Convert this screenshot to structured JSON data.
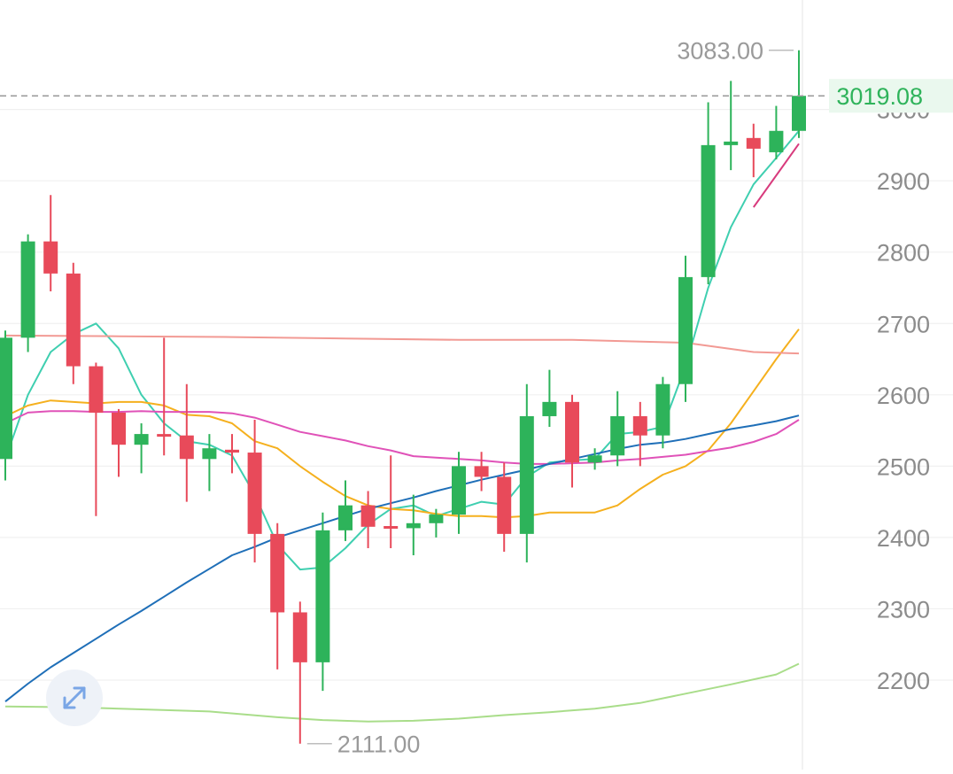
{
  "chart_data": {
    "type": "candlestick",
    "ylim": [
      2100,
      3120
    ],
    "yticks": [
      2200,
      2300,
      2400,
      2500,
      2600,
      2700,
      2800,
      2900,
      3000
    ],
    "ytick_labels": [
      "2200",
      "2300",
      "2400",
      "2500",
      "2600",
      "2700",
      "2800",
      "2900",
      "3000"
    ],
    "last_price": 3019.08,
    "last_price_label": "3019.08",
    "high_label": "3083.00",
    "low_label": "2111.00",
    "grid": true,
    "colors": {
      "up": "#2db35a",
      "down": "#e84a5a",
      "last_price_line": "#999999",
      "last_price_text": "#2fb35b",
      "last_price_bg": "#eaf8ee",
      "ma_1": "#3fcfb0",
      "ma_2": "#f5b01e",
      "ma_3": "#e052b8",
      "ma_4": "#1f6fb8",
      "ma_5": "#f29a94",
      "ma_6": "#a9dd8a",
      "ma_7": "#d83b7d"
    },
    "candles": [
      {
        "o": 2510,
        "h": 2690,
        "l": 2480,
        "c": 2680
      },
      {
        "o": 2680,
        "h": 2825,
        "l": 2660,
        "c": 2815
      },
      {
        "o": 2815,
        "h": 2880,
        "l": 2745,
        "c": 2770
      },
      {
        "o": 2770,
        "h": 2785,
        "l": 2615,
        "c": 2640
      },
      {
        "o": 2640,
        "h": 2645,
        "l": 2430,
        "c": 2575
      },
      {
        "o": 2575,
        "h": 2580,
        "l": 2485,
        "c": 2530
      },
      {
        "o": 2530,
        "h": 2560,
        "l": 2490,
        "c": 2545
      },
      {
        "o": 2545,
        "h": 2680,
        "l": 2515,
        "c": 2543
      },
      {
        "o": 2543,
        "h": 2615,
        "l": 2450,
        "c": 2510
      },
      {
        "o": 2510,
        "h": 2545,
        "l": 2465,
        "c": 2525
      },
      {
        "o": 2523,
        "h": 2545,
        "l": 2490,
        "c": 2519
      },
      {
        "o": 2519,
        "h": 2565,
        "l": 2365,
        "c": 2405
      },
      {
        "o": 2405,
        "h": 2420,
        "l": 2215,
        "c": 2295
      },
      {
        "o": 2295,
        "h": 2310,
        "l": 2111,
        "c": 2225
      },
      {
        "o": 2225,
        "h": 2435,
        "l": 2185,
        "c": 2410
      },
      {
        "o": 2410,
        "h": 2480,
        "l": 2395,
        "c": 2445
      },
      {
        "o": 2445,
        "h": 2465,
        "l": 2385,
        "c": 2415
      },
      {
        "o": 2416,
        "h": 2515,
        "l": 2385,
        "c": 2413
      },
      {
        "o": 2413,
        "h": 2460,
        "l": 2375,
        "c": 2420
      },
      {
        "o": 2420,
        "h": 2440,
        "l": 2400,
        "c": 2432
      },
      {
        "o": 2432,
        "h": 2520,
        "l": 2405,
        "c": 2500
      },
      {
        "o": 2500,
        "h": 2520,
        "l": 2465,
        "c": 2485
      },
      {
        "o": 2485,
        "h": 2505,
        "l": 2380,
        "c": 2405
      },
      {
        "o": 2405,
        "h": 2615,
        "l": 2365,
        "c": 2570
      },
      {
        "o": 2570,
        "h": 2635,
        "l": 2555,
        "c": 2590
      },
      {
        "o": 2590,
        "h": 2600,
        "l": 2470,
        "c": 2505
      },
      {
        "o": 2505,
        "h": 2525,
        "l": 2495,
        "c": 2515
      },
      {
        "o": 2515,
        "h": 2605,
        "l": 2500,
        "c": 2570
      },
      {
        "o": 2570,
        "h": 2590,
        "l": 2500,
        "c": 2543
      },
      {
        "o": 2543,
        "h": 2625,
        "l": 2525,
        "c": 2615
      },
      {
        "o": 2615,
        "h": 2795,
        "l": 2590,
        "c": 2765
      },
      {
        "o": 2765,
        "h": 3010,
        "l": 2755,
        "c": 2950
      },
      {
        "o": 2950,
        "h": 3040,
        "l": 2915,
        "c": 2955
      },
      {
        "o": 2960,
        "h": 2980,
        "l": 2905,
        "c": 2945
      },
      {
        "o": 2940,
        "h": 3005,
        "l": 2930,
        "c": 2970
      },
      {
        "o": 2970,
        "h": 3083,
        "l": 2960,
        "c": 3019.08
      }
    ],
    "ma_lines": [
      {
        "color_key": "ma_1",
        "points": [
          [
            0,
            2510
          ],
          [
            1,
            2600
          ],
          [
            2,
            2660
          ],
          [
            3,
            2685
          ],
          [
            4,
            2700
          ],
          [
            5,
            2665
          ],
          [
            6,
            2600
          ],
          [
            7,
            2560
          ],
          [
            8,
            2535
          ],
          [
            9,
            2530
          ],
          [
            10,
            2515
          ],
          [
            11,
            2460
          ],
          [
            12,
            2390
          ],
          [
            13,
            2355
          ],
          [
            14,
            2358
          ],
          [
            15,
            2385
          ],
          [
            16,
            2418
          ],
          [
            17,
            2440
          ],
          [
            18,
            2445
          ],
          [
            19,
            2430
          ],
          [
            20,
            2440
          ],
          [
            21,
            2450
          ],
          [
            22,
            2446
          ],
          [
            23,
            2485
          ],
          [
            24,
            2505
          ],
          [
            25,
            2508
          ],
          [
            26,
            2510
          ],
          [
            27,
            2545
          ],
          [
            28,
            2548
          ],
          [
            29,
            2555
          ],
          [
            30,
            2640
          ],
          [
            31,
            2750
          ],
          [
            32,
            2835
          ],
          [
            33,
            2895
          ],
          [
            34,
            2932
          ],
          [
            35,
            2970
          ]
        ]
      },
      {
        "color_key": "ma_2",
        "points": [
          [
            0,
            2570
          ],
          [
            1,
            2585
          ],
          [
            2,
            2592
          ],
          [
            3,
            2590
          ],
          [
            4,
            2588
          ],
          [
            5,
            2590
          ],
          [
            6,
            2590
          ],
          [
            7,
            2585
          ],
          [
            8,
            2572
          ],
          [
            9,
            2570
          ],
          [
            10,
            2560
          ],
          [
            11,
            2535
          ],
          [
            12,
            2525
          ],
          [
            13,
            2500
          ],
          [
            14,
            2478
          ],
          [
            15,
            2458
          ],
          [
            16,
            2445
          ],
          [
            17,
            2440
          ],
          [
            18,
            2438
          ],
          [
            19,
            2433
          ],
          [
            20,
            2430
          ],
          [
            21,
            2430
          ],
          [
            22,
            2428
          ],
          [
            23,
            2430
          ],
          [
            24,
            2435
          ],
          [
            25,
            2435
          ],
          [
            26,
            2435
          ],
          [
            27,
            2445
          ],
          [
            28,
            2468
          ],
          [
            29,
            2488
          ],
          [
            30,
            2500
          ],
          [
            31,
            2522
          ],
          [
            32,
            2560
          ],
          [
            33,
            2605
          ],
          [
            34,
            2650
          ],
          [
            35,
            2692
          ]
        ]
      },
      {
        "color_key": "ma_3",
        "points": [
          [
            0,
            2560
          ],
          [
            1,
            2575
          ],
          [
            2,
            2577
          ],
          [
            3,
            2577
          ],
          [
            4,
            2576
          ],
          [
            5,
            2576
          ],
          [
            6,
            2577
          ],
          [
            7,
            2576
          ],
          [
            8,
            2576
          ],
          [
            9,
            2576
          ],
          [
            10,
            2574
          ],
          [
            11,
            2568
          ],
          [
            12,
            2558
          ],
          [
            13,
            2548
          ],
          [
            14,
            2542
          ],
          [
            15,
            2536
          ],
          [
            16,
            2528
          ],
          [
            17,
            2522
          ],
          [
            18,
            2514
          ],
          [
            19,
            2512
          ],
          [
            20,
            2510
          ],
          [
            21,
            2508
          ],
          [
            22,
            2505
          ],
          [
            23,
            2503
          ],
          [
            24,
            2503
          ],
          [
            25,
            2504
          ],
          [
            26,
            2505
          ],
          [
            27,
            2508
          ],
          [
            28,
            2510
          ],
          [
            29,
            2513
          ],
          [
            30,
            2516
          ],
          [
            31,
            2521
          ],
          [
            32,
            2526
          ],
          [
            33,
            2534
          ],
          [
            34,
            2545
          ],
          [
            35,
            2565
          ]
        ]
      },
      {
        "color_key": "ma_4",
        "points": [
          [
            0,
            2170
          ],
          [
            1,
            2195
          ],
          [
            2,
            2218
          ],
          [
            3,
            2238
          ],
          [
            4,
            2258
          ],
          [
            5,
            2278
          ],
          [
            6,
            2297
          ],
          [
            7,
            2317
          ],
          [
            8,
            2337
          ],
          [
            9,
            2356
          ],
          [
            10,
            2375
          ],
          [
            11,
            2387
          ],
          [
            12,
            2400
          ],
          [
            13,
            2410
          ],
          [
            14,
            2420
          ],
          [
            15,
            2430
          ],
          [
            16,
            2440
          ],
          [
            17,
            2448
          ],
          [
            18,
            2456
          ],
          [
            19,
            2465
          ],
          [
            20,
            2473
          ],
          [
            21,
            2481
          ],
          [
            22,
            2488
          ],
          [
            23,
            2495
          ],
          [
            24,
            2503
          ],
          [
            25,
            2510
          ],
          [
            26,
            2517
          ],
          [
            27,
            2524
          ],
          [
            28,
            2530
          ],
          [
            29,
            2533
          ],
          [
            30,
            2538
          ],
          [
            31,
            2545
          ],
          [
            32,
            2552
          ],
          [
            33,
            2557
          ],
          [
            34,
            2563
          ],
          [
            35,
            2571
          ]
        ]
      },
      {
        "color_key": "ma_5",
        "points": [
          [
            0,
            2683
          ],
          [
            5,
            2682
          ],
          [
            10,
            2681
          ],
          [
            15,
            2679
          ],
          [
            20,
            2677
          ],
          [
            25,
            2677
          ],
          [
            30,
            2673
          ],
          [
            33,
            2660
          ],
          [
            35,
            2658
          ]
        ]
      },
      {
        "color_key": "ma_6",
        "points": [
          [
            0,
            2163
          ],
          [
            3,
            2162
          ],
          [
            6,
            2159
          ],
          [
            9,
            2156
          ],
          [
            12,
            2148
          ],
          [
            14,
            2144
          ],
          [
            16,
            2142
          ],
          [
            18,
            2143
          ],
          [
            20,
            2146
          ],
          [
            22,
            2151
          ],
          [
            24,
            2155
          ],
          [
            26,
            2160
          ],
          [
            28,
            2168
          ],
          [
            30,
            2181
          ],
          [
            32,
            2194
          ],
          [
            34,
            2208
          ],
          [
            35,
            2223
          ]
        ]
      },
      {
        "color_key": "ma_7",
        "points": [
          [
            33,
            2863
          ],
          [
            35,
            2952
          ]
        ]
      }
    ]
  },
  "controls": {
    "expand_icon": "expand-arrows-icon"
  }
}
